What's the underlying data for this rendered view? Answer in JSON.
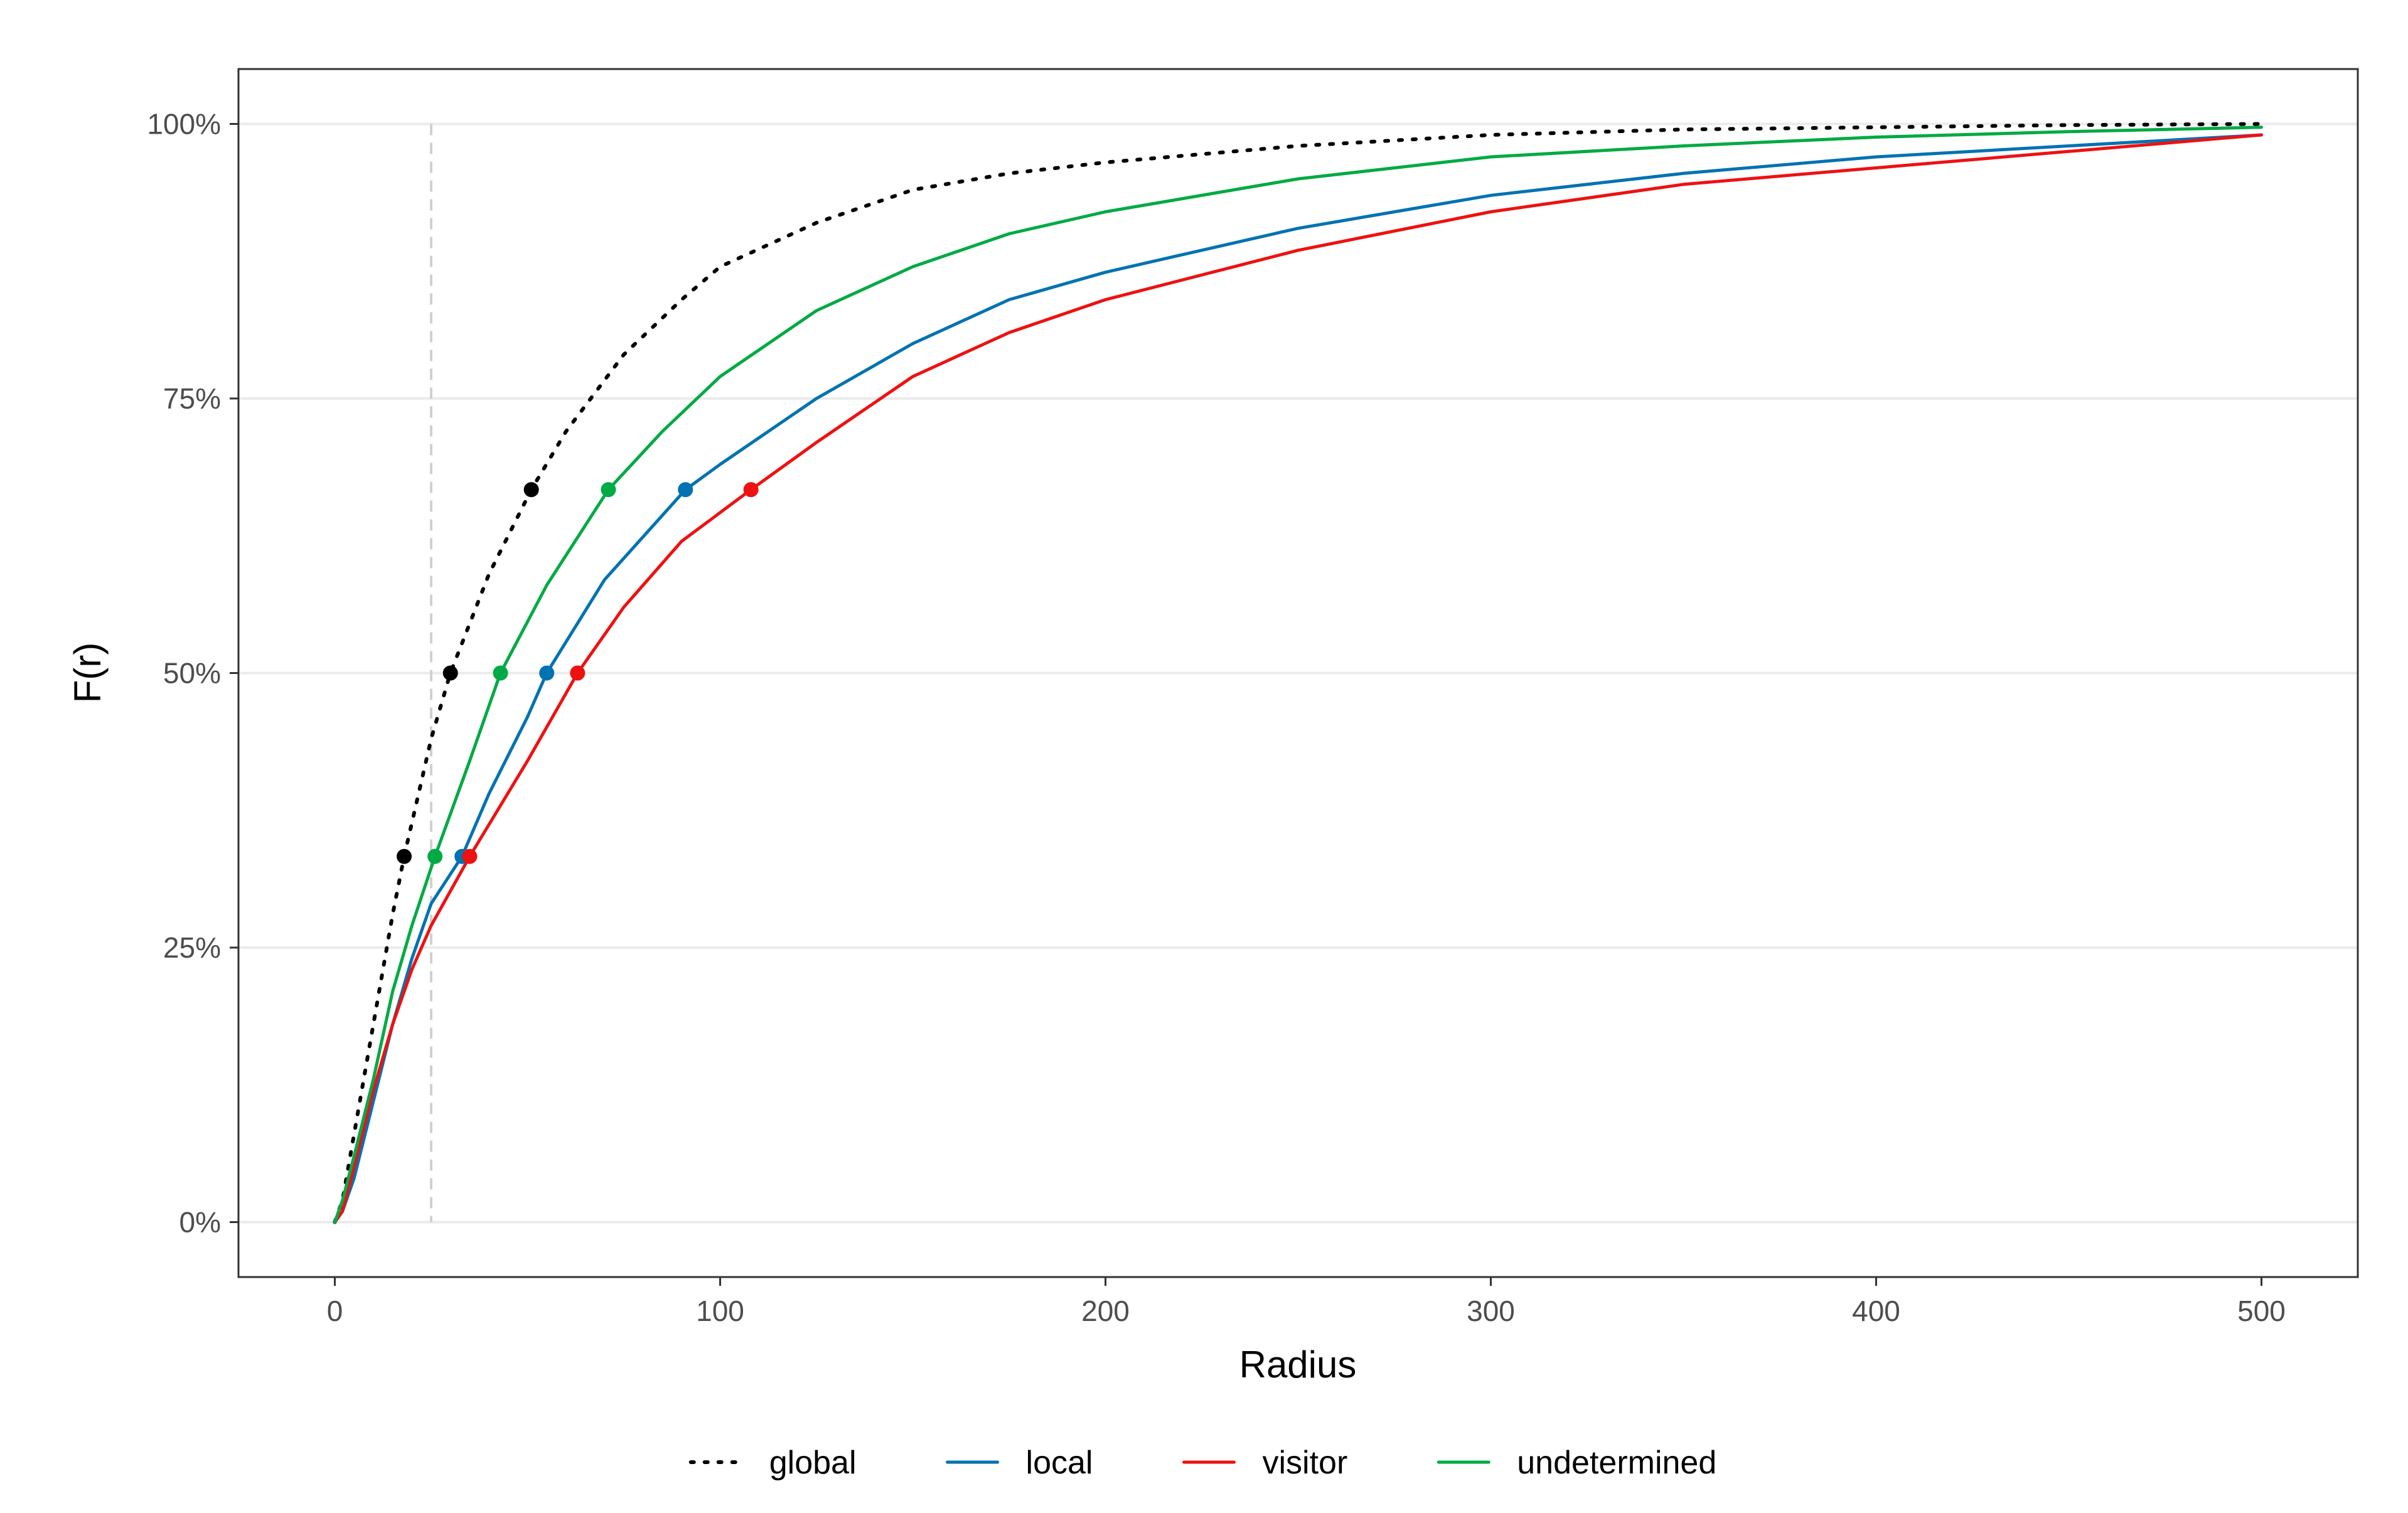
{
  "chart_data": {
    "type": "line",
    "title": "",
    "xlabel": "Radius",
    "ylabel": "F(r)",
    "xlim": [
      -25,
      525
    ],
    "ylim": [
      -0.05,
      1.05
    ],
    "x_ticks": [
      0,
      100,
      200,
      300,
      400,
      500
    ],
    "x_tick_labels": [
      "0",
      "100",
      "200",
      "300",
      "400",
      "500"
    ],
    "y_ticks": [
      0,
      0.25,
      0.5,
      0.75,
      1.0
    ],
    "y_tick_labels": [
      "0%",
      "25%",
      "50%",
      "75%",
      "100%"
    ],
    "grid": "horizontal",
    "legend_position": "bottom",
    "reference_line": {
      "axis": "x",
      "value": 25,
      "style": "dashed",
      "color": "#d0d0d0"
    },
    "series": [
      {
        "name": "global",
        "color": "#000000",
        "style": "dotted",
        "x": [
          0,
          2,
          5,
          10,
          15,
          18,
          25,
          30,
          40,
          51,
          60,
          75,
          90,
          100,
          125,
          150,
          175,
          200,
          250,
          300,
          350,
          400,
          450,
          500
        ],
        "y": [
          0,
          0.02,
          0.08,
          0.18,
          0.28,
          0.333,
          0.44,
          0.5,
          0.59,
          0.667,
          0.72,
          0.79,
          0.84,
          0.87,
          0.91,
          0.94,
          0.955,
          0.965,
          0.98,
          0.99,
          0.995,
          0.997,
          0.999,
          1.0
        ],
        "markers": [
          [
            18,
            0.333
          ],
          [
            30,
            0.5
          ],
          [
            51,
            0.667
          ]
        ]
      },
      {
        "name": "local",
        "color": "#0072b2",
        "style": "solid",
        "x": [
          0,
          2,
          5,
          10,
          15,
          20,
          25,
          33,
          40,
          50,
          55,
          70,
          91,
          100,
          125,
          150,
          175,
          200,
          250,
          300,
          350,
          400,
          450,
          500
        ],
        "y": [
          0,
          0.01,
          0.04,
          0.11,
          0.18,
          0.24,
          0.29,
          0.333,
          0.39,
          0.46,
          0.5,
          0.585,
          0.667,
          0.69,
          0.75,
          0.8,
          0.84,
          0.865,
          0.905,
          0.935,
          0.955,
          0.97,
          0.98,
          0.99
        ],
        "markers": [
          [
            33,
            0.333
          ],
          [
            55,
            0.5
          ],
          [
            91,
            0.667
          ]
        ]
      },
      {
        "name": "visitor",
        "color": "#ee1111",
        "style": "solid",
        "x": [
          0,
          2,
          5,
          10,
          15,
          20,
          25,
          35,
          50,
          63,
          75,
          90,
          108,
          125,
          150,
          175,
          200,
          250,
          300,
          350,
          400,
          450,
          500
        ],
        "y": [
          0,
          0.01,
          0.05,
          0.12,
          0.18,
          0.23,
          0.27,
          0.333,
          0.42,
          0.5,
          0.56,
          0.62,
          0.667,
          0.71,
          0.77,
          0.81,
          0.84,
          0.885,
          0.92,
          0.945,
          0.96,
          0.975,
          0.99
        ],
        "markers": [
          [
            35,
            0.333
          ],
          [
            63,
            0.5
          ],
          [
            108,
            0.667
          ]
        ]
      },
      {
        "name": "undetermined",
        "color": "#00aa44",
        "style": "solid",
        "x": [
          0,
          2,
          5,
          10,
          15,
          20,
          26,
          35,
          43,
          55,
          71,
          85,
          100,
          125,
          150,
          175,
          200,
          250,
          300,
          350,
          400,
          450,
          500
        ],
        "y": [
          0,
          0.02,
          0.06,
          0.13,
          0.21,
          0.27,
          0.333,
          0.42,
          0.5,
          0.58,
          0.667,
          0.72,
          0.77,
          0.83,
          0.87,
          0.9,
          0.92,
          0.95,
          0.97,
          0.98,
          0.988,
          0.993,
          0.997
        ],
        "markers": [
          [
            26,
            0.333
          ],
          [
            43,
            0.5
          ],
          [
            71,
            0.667
          ]
        ]
      }
    ]
  }
}
